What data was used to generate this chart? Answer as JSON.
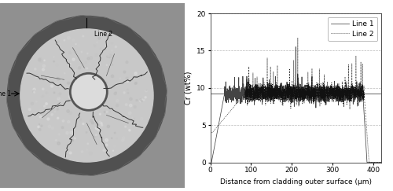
{
  "xlim": [
    0,
    420
  ],
  "ylim": [
    0,
    20
  ],
  "xticks": [
    0,
    100,
    200,
    300,
    400
  ],
  "yticks": [
    0,
    5,
    10,
    15,
    20
  ],
  "xlabel": "Distance from cladding outer surface (μm)",
  "ylabel": "Cr (wt%)",
  "line1_color": "#444444",
  "line2_color": "#111111",
  "hline_y": 9.2,
  "hline_color": "#777777",
  "grid_color": "#bbbbbb",
  "legend_labels": [
    "Line 1",
    "Line 2"
  ],
  "background_color": "#ffffff",
  "plateau_value": 9.2,
  "outer_bg_color": "#a8a8a8",
  "cladding_color": "#4a4a4a",
  "fuel_color": "#d0d0d0",
  "void_color": "#e0e0e0",
  "crack_color": "#333333"
}
